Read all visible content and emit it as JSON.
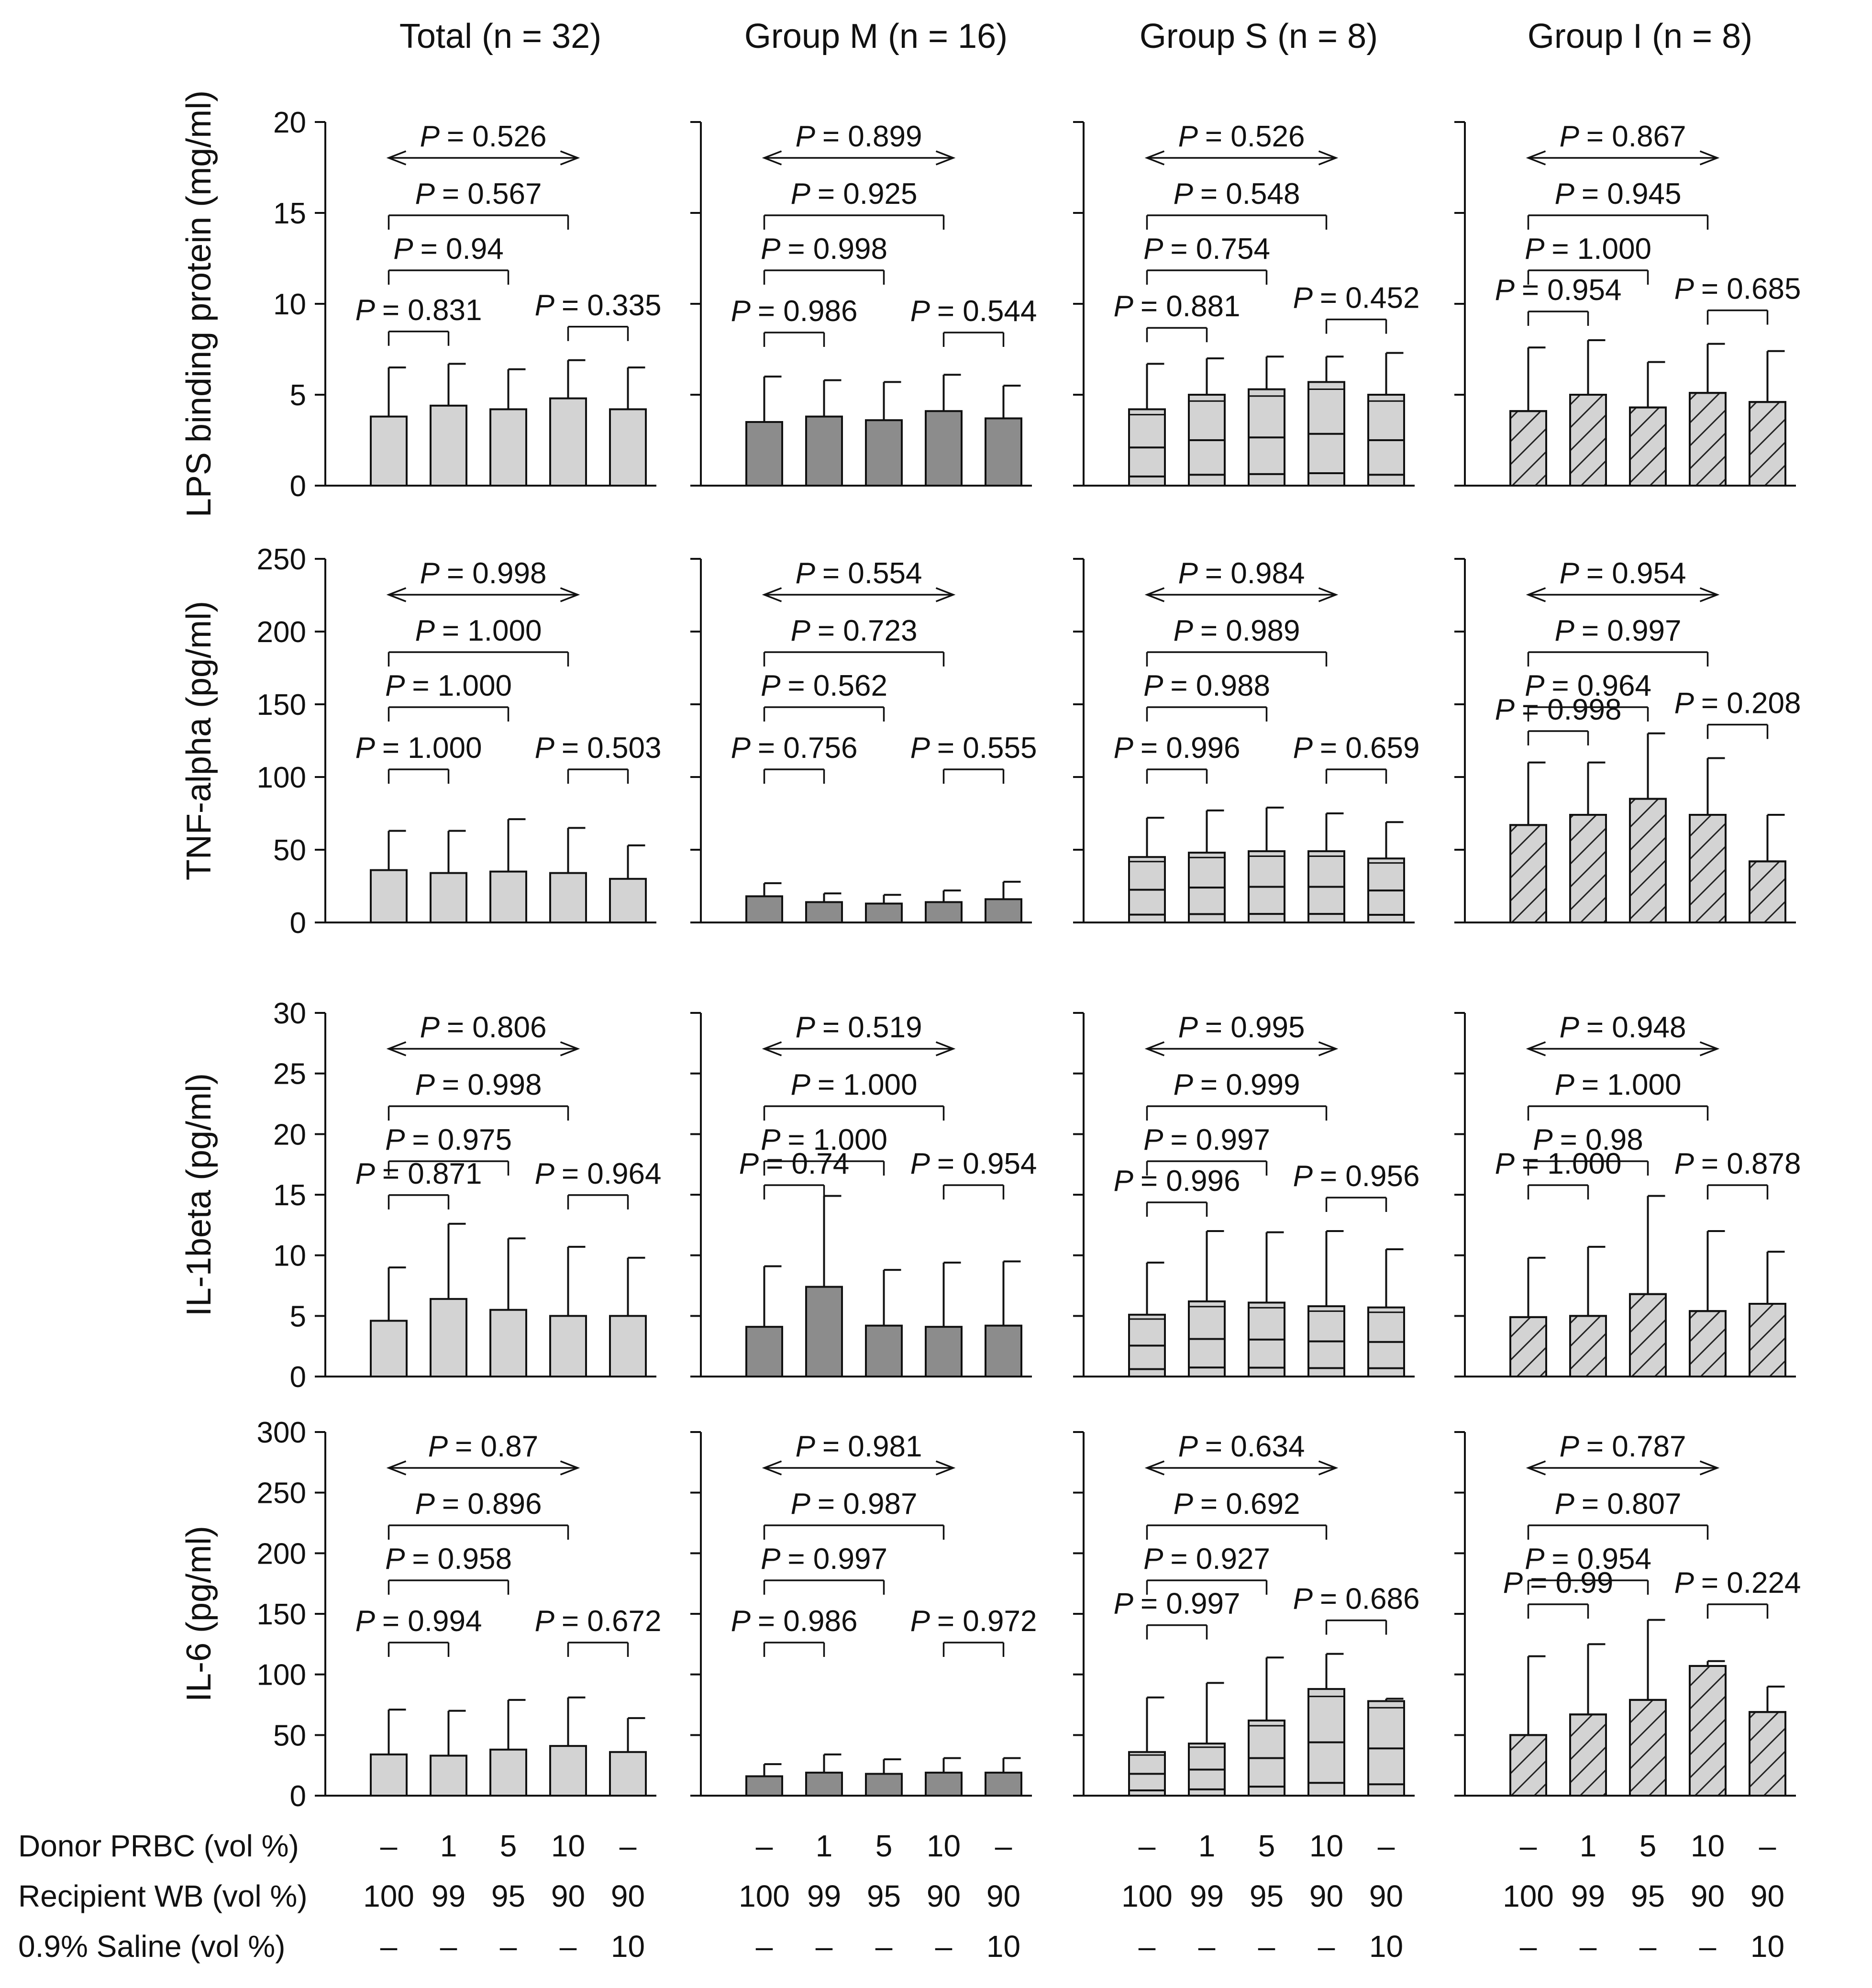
{
  "columns": [
    "Total (n = 32)",
    "Group M (n = 16)",
    "Group S (n = 8)",
    "Group I (n = 8)"
  ],
  "column_styles": [
    {
      "fill": "#d3d3d3",
      "pattern": "none"
    },
    {
      "fill": "#8c8c8c",
      "pattern": "none"
    },
    {
      "fill": "#d3d3d3",
      "pattern": "quartiles"
    },
    {
      "fill": "#d3d3d3",
      "pattern": "hatch"
    }
  ],
  "rows": [
    {
      "ylabel": "LPS binding protein (mg/ml)",
      "ylim": [
        0,
        20
      ],
      "ticks": [
        "0",
        "5",
        "10",
        "15",
        "20"
      ]
    },
    {
      "ylabel": "TNF-alpha (pg/ml)",
      "ylim": [
        0,
        250
      ],
      "ticks": [
        "0",
        "50",
        "100",
        "150",
        "200",
        "250"
      ]
    },
    {
      "ylabel": "IL-1beta (pg/ml)",
      "ylim": [
        0,
        30
      ],
      "ticks": [
        "0",
        "5",
        "10",
        "15",
        "20",
        "25",
        "30"
      ]
    },
    {
      "ylabel": "IL-6 (pg/ml)",
      "ylim": [
        0,
        300
      ],
      "ticks": [
        "0",
        "50",
        "100",
        "150",
        "200",
        "250",
        "300"
      ]
    }
  ],
  "conditions": {
    "labels": [
      "Donor PRBC (vol %)",
      "Recipient WB (vol %)",
      "0.9% Saline (vol %)"
    ],
    "values": [
      [
        "–",
        "1",
        "5",
        "10",
        "–"
      ],
      [
        "100",
        "99",
        "95",
        "90",
        "90"
      ],
      [
        "–",
        "–",
        "–",
        "–",
        "10"
      ]
    ]
  },
  "chart_data": {
    "type": "bar",
    "categories": [
      "1",
      "2",
      "3",
      "4",
      "5"
    ],
    "panels": [
      {
        "row": 0,
        "col": 0,
        "means": [
          3.8,
          4.4,
          4.2,
          4.8,
          4.2
        ],
        "errors": [
          6.5,
          6.7,
          6.4,
          6.9,
          6.5
        ],
        "pvalues": [
          "= 0.831",
          "= 0.94",
          "= 0.567",
          "= 0.526",
          "= 0.335"
        ]
      },
      {
        "row": 0,
        "col": 1,
        "means": [
          3.5,
          3.8,
          3.6,
          4.1,
          3.7
        ],
        "errors": [
          6.0,
          5.8,
          5.7,
          6.1,
          5.5
        ],
        "pvalues": [
          "= 0.986",
          "= 0.998",
          "= 0.925",
          "= 0.899",
          "= 0.544"
        ]
      },
      {
        "row": 0,
        "col": 2,
        "means": [
          4.2,
          5.0,
          5.3,
          5.7,
          5.0
        ],
        "errors": [
          6.7,
          7.0,
          7.1,
          7.1,
          7.3
        ],
        "pvalues": [
          "= 0.881",
          "= 0.754",
          "= 0.548",
          "= 0.526",
          "= 0.452"
        ]
      },
      {
        "row": 0,
        "col": 3,
        "means": [
          4.1,
          5.0,
          4.3,
          5.1,
          4.6
        ],
        "errors": [
          7.6,
          8.0,
          6.8,
          7.8,
          7.4
        ],
        "pvalues": [
          "= 0.954",
          "= 1.000",
          "= 0.945",
          "= 0.867",
          "= 0.685"
        ]
      },
      {
        "row": 1,
        "col": 0,
        "means": [
          36,
          34,
          35,
          34,
          30
        ],
        "errors": [
          63,
          63,
          71,
          65,
          53
        ],
        "pvalues": [
          "= 1.000",
          "= 1.000",
          "= 1.000",
          "= 0.998",
          "= 0.503"
        ]
      },
      {
        "row": 1,
        "col": 1,
        "means": [
          18,
          14,
          13,
          14,
          16
        ],
        "errors": [
          27,
          20,
          19,
          22,
          28
        ],
        "pvalues": [
          "= 0.756",
          "= 0.562",
          "= 0.723",
          "= 0.554",
          "= 0.555"
        ]
      },
      {
        "row": 1,
        "col": 2,
        "means": [
          45,
          48,
          49,
          49,
          44
        ],
        "errors": [
          72,
          77,
          79,
          75,
          69
        ],
        "pvalues": [
          "= 0.996",
          "= 0.988",
          "= 0.989",
          "= 0.984",
          "= 0.659"
        ]
      },
      {
        "row": 1,
        "col": 3,
        "means": [
          67,
          74,
          85,
          74,
          42
        ],
        "errors": [
          110,
          110,
          130,
          113,
          74
        ],
        "pvalues": [
          "= 0.998",
          "= 0.964",
          "= 0.997",
          "= 0.954",
          "= 0.208"
        ]
      },
      {
        "row": 2,
        "col": 0,
        "means": [
          4.6,
          6.4,
          5.5,
          5.0,
          5.0
        ],
        "errors": [
          9.0,
          12.6,
          11.4,
          10.7,
          9.8
        ],
        "pvalues": [
          "= 0.871",
          "= 0.975",
          "= 0.998",
          "= 0.806",
          "= 0.964"
        ]
      },
      {
        "row": 2,
        "col": 1,
        "means": [
          4.1,
          7.4,
          4.2,
          4.1,
          4.2
        ],
        "errors": [
          9.1,
          14.9,
          8.8,
          9.4,
          9.5
        ],
        "pvalues": [
          "= 0.74",
          "= 1.000",
          "= 1.000",
          "= 0.519",
          "= 0.954"
        ]
      },
      {
        "row": 2,
        "col": 2,
        "means": [
          5.1,
          6.2,
          6.1,
          5.8,
          5.7
        ],
        "errors": [
          9.4,
          12.0,
          11.9,
          12.0,
          10.5
        ],
        "pvalues": [
          "= 0.996",
          "= 0.997",
          "= 0.999",
          "= 0.995",
          "= 0.956"
        ]
      },
      {
        "row": 2,
        "col": 3,
        "means": [
          4.9,
          5.0,
          6.8,
          5.4,
          6.0
        ],
        "errors": [
          9.8,
          10.7,
          14.9,
          12.0,
          10.3
        ],
        "pvalues": [
          "= 1.000",
          "= 0.98",
          "= 1.000",
          "= 0.948",
          "= 0.878"
        ]
      },
      {
        "row": 3,
        "col": 0,
        "means": [
          34,
          33,
          38,
          41,
          36
        ],
        "errors": [
          71,
          70,
          79,
          81,
          64
        ],
        "pvalues": [
          "= 0.994",
          "= 0.958",
          "= 0.896",
          "= 0.87",
          "= 0.672"
        ]
      },
      {
        "row": 3,
        "col": 1,
        "means": [
          16,
          19,
          18,
          19,
          19
        ],
        "errors": [
          26,
          34,
          30,
          31,
          31
        ],
        "pvalues": [
          "= 0.986",
          "= 0.997",
          "= 0.987",
          "= 0.981",
          "= 0.972"
        ]
      },
      {
        "row": 3,
        "col": 2,
        "means": [
          36,
          43,
          62,
          88,
          78
        ],
        "errors": [
          81,
          93,
          114,
          117,
          80
        ],
        "pvalues": [
          "= 0.997",
          "= 0.927",
          "= 0.692",
          "= 0.634",
          "= 0.686"
        ]
      },
      {
        "row": 3,
        "col": 3,
        "means": [
          50,
          67,
          79,
          107,
          69
        ],
        "errors": [
          115,
          125,
          145,
          111,
          90
        ],
        "pvalues": [
          "= 0.99",
          "= 0.954",
          "= 0.807",
          "= 0.787",
          "= 0.224"
        ]
      }
    ]
  }
}
